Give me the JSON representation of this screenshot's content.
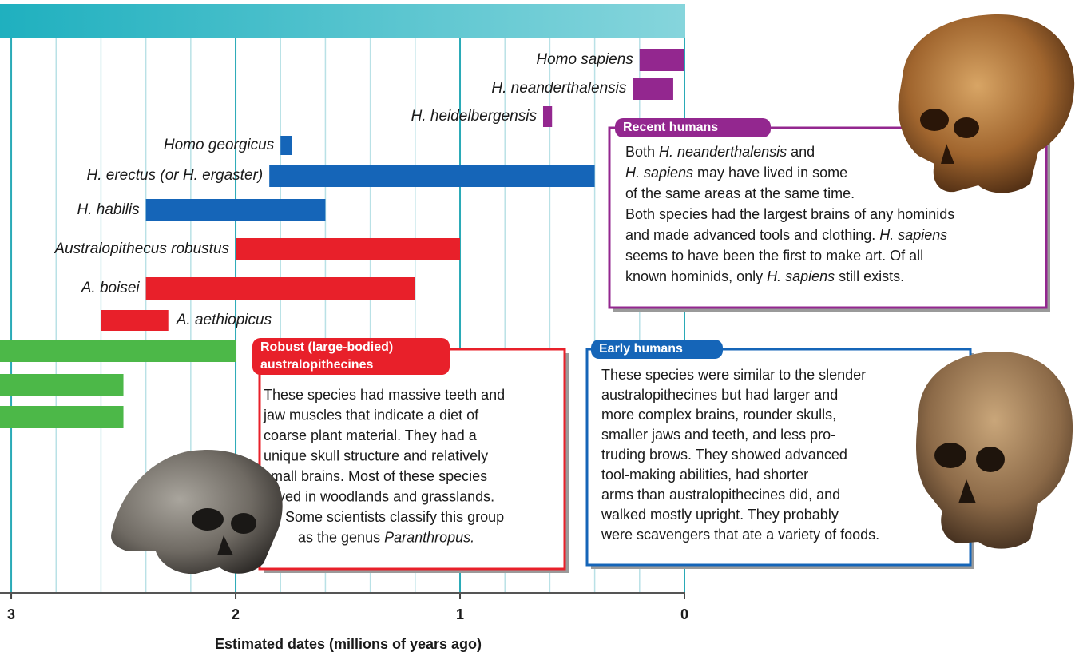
{
  "chart_data": {
    "type": "range-bar",
    "xlabel": "Estimated dates (millions of years ago)",
    "xlim": [
      3.05,
      0
    ],
    "xticks": [
      3,
      2,
      1,
      0
    ],
    "minor_xticks": [
      2.8,
      2.6,
      2.4,
      2.2,
      1.8,
      1.6,
      1.4,
      1.2,
      0.8,
      0.6,
      0.4,
      0.2
    ],
    "grid": true,
    "categories": [
      "Homo sapiens",
      "H. neanderthalensis",
      "H. heidelbergensis",
      "Homo georgicus",
      "H. erectus (or H. ergaster)",
      "H. habilis",
      "Australopithecus robustus",
      "A. boisei",
      "A. aethiopicus",
      null,
      null,
      null
    ],
    "start": [
      0.2,
      0.23,
      0.63,
      1.8,
      1.85,
      2.4,
      2.0,
      2.4,
      2.6,
      3.05,
      3.05,
      3.05
    ],
    "end": [
      0,
      0.05,
      0.59,
      1.75,
      0.4,
      1.6,
      1.0,
      1.2,
      2.3,
      2.0,
      2.5,
      2.5
    ],
    "colors": [
      "#93278f",
      "#93278f",
      "#93278f",
      "#1565b8",
      "#1565b8",
      "#1565b8",
      "#e8202a",
      "#e8202a",
      "#e8202a",
      "#4cb848",
      "#4cb848",
      "#4cb848"
    ],
    "annotations": [
      {
        "title": [
          "Recent humans"
        ],
        "color": "#93278f",
        "lines": [
          [
            "Both ",
            {
              "italic": "H. neanderthalensis"
            },
            " and"
          ],
          [
            {
              "italic": "H. sapiens"
            },
            " may have lived in some"
          ],
          [
            "of the same areas at the same time."
          ],
          [
            "Both species had the largest brains of any hominids"
          ],
          [
            "and made advanced tools and clothing. ",
            {
              "italic": "H. sapiens"
            }
          ],
          [
            "seems to have been the first to make art. Of all"
          ],
          [
            "known hominids, only ",
            {
              "italic": "H. sapiens"
            },
            " still exists."
          ]
        ]
      },
      {
        "title": [
          "Robust (large-bodied)",
          "australopithecines"
        ],
        "color": "#e8202a",
        "lines": [
          [
            "These species had massive teeth and"
          ],
          [
            "jaw muscles that indicate a diet of"
          ],
          [
            "coarse plant material. They had a"
          ],
          [
            "unique skull structure and relatively"
          ],
          [
            "small brains. Most of these species"
          ],
          [
            "lived in woodlands and grasslands."
          ],
          [
            "Some scientists classify this group"
          ],
          [
            "as the genus ",
            {
              "italic": "Paranthropus."
            }
          ]
        ]
      },
      {
        "title": [
          "Early humans"
        ],
        "color": "#1565b8",
        "lines": [
          [
            "These species were similar to the slender"
          ],
          [
            "australopithecines but had larger and"
          ],
          [
            "more complex brains, rounder skulls,"
          ],
          [
            "smaller jaws and teeth, and less pro-"
          ],
          [
            "truding brows. They showed advanced"
          ],
          [
            "tool-making abilities, had shorter"
          ],
          [
            "arms than australopithecines did, and"
          ],
          [
            "walked mostly upright. They probably"
          ],
          [
            "were scavengers that ate a variety of foods."
          ]
        ]
      }
    ]
  }
}
